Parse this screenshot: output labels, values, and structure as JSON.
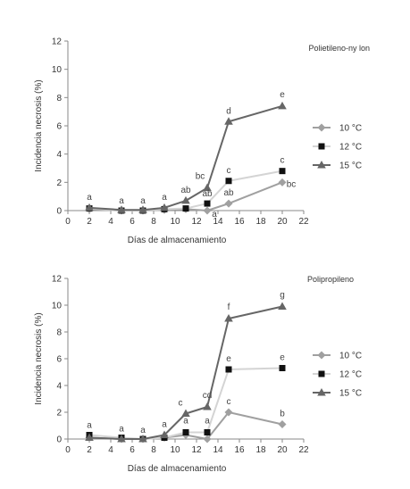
{
  "chart_data": [
    {
      "type": "line",
      "title": "Polietileno-ny lon",
      "xlabel": "Días de almacenamiento",
      "ylabel": "Incidencia necrosis (%)",
      "xlim": [
        0,
        22
      ],
      "ylim": [
        0,
        12
      ],
      "x_ticks": [
        0,
        2,
        4,
        6,
        8,
        10,
        12,
        14,
        16,
        18,
        20,
        22
      ],
      "y_ticks": [
        0,
        2,
        4,
        6,
        8,
        10,
        12
      ],
      "grid": false,
      "legend_position": "right",
      "series": [
        {
          "name": "10 °C",
          "color": "#a0a0a0",
          "marker": "diamond",
          "x": [
            2,
            5,
            7,
            9,
            11,
            13,
            15,
            20
          ],
          "y": [
            0.1,
            0.0,
            0.0,
            0.05,
            0.1,
            0.0,
            0.5,
            2.0
          ]
        },
        {
          "name": "12 °C",
          "color": "#111111",
          "line_color": "#d4d4d4",
          "marker": "square",
          "x": [
            2,
            5,
            7,
            9,
            11,
            13,
            15,
            20
          ],
          "y": [
            0.15,
            0.0,
            0.0,
            0.1,
            0.15,
            0.5,
            2.1,
            2.8
          ]
        },
        {
          "name": "15 °C",
          "color": "#666666",
          "marker": "triangle",
          "x": [
            2,
            5,
            7,
            9,
            11,
            13,
            15,
            20
          ],
          "y": [
            0.2,
            0.05,
            0.05,
            0.2,
            0.7,
            1.6,
            6.3,
            7.4
          ]
        }
      ],
      "annotations": [
        {
          "x": 2,
          "y": 0.2,
          "text": "a"
        },
        {
          "x": 5,
          "y": 0.05,
          "text": "a"
        },
        {
          "x": 7,
          "y": 0.05,
          "text": "a"
        },
        {
          "x": 9,
          "y": 0.2,
          "text": "a"
        },
        {
          "x": 11,
          "y": 0.7,
          "text": "ab"
        },
        {
          "x": 13,
          "y": 1.6,
          "text": "bc"
        },
        {
          "x": 13,
          "y": 0.5,
          "text": "ab"
        },
        {
          "x": 13,
          "y": 0.0,
          "text": "a"
        },
        {
          "x": 15,
          "y": 6.3,
          "text": "d"
        },
        {
          "x": 15,
          "y": 2.1,
          "text": "c"
        },
        {
          "x": 15,
          "y": 0.5,
          "text": "ab"
        },
        {
          "x": 20,
          "y": 7.4,
          "text": "e"
        },
        {
          "x": 20,
          "y": 2.8,
          "text": "c"
        },
        {
          "x": 20,
          "y": 2.0,
          "text": "bc"
        }
      ]
    },
    {
      "type": "line",
      "title": "Polipropileno",
      "xlabel": "Días de almacenamiento",
      "ylabel": "Incidencia necrosis (%)",
      "xlim": [
        0,
        22
      ],
      "ylim": [
        0,
        12
      ],
      "x_ticks": [
        0,
        2,
        4,
        6,
        8,
        10,
        12,
        14,
        16,
        18,
        20,
        22
      ],
      "y_ticks": [
        0,
        2,
        4,
        6,
        8,
        10,
        12
      ],
      "grid": false,
      "legend_position": "right",
      "series": [
        {
          "name": "10 °C",
          "color": "#a0a0a0",
          "marker": "diamond",
          "x": [
            2,
            5,
            7,
            9,
            11,
            13,
            15,
            20
          ],
          "y": [
            0.1,
            0.0,
            0.0,
            0.1,
            0.3,
            0.0,
            2.0,
            1.1
          ]
        },
        {
          "name": "12 °C",
          "color": "#111111",
          "line_color": "#d4d4d4",
          "marker": "square",
          "x": [
            2,
            5,
            7,
            9,
            11,
            13,
            15,
            20
          ],
          "y": [
            0.3,
            0.1,
            0.0,
            0.1,
            0.5,
            0.5,
            5.2,
            5.3
          ]
        },
        {
          "name": "15 °C",
          "color": "#666666",
          "marker": "triangle",
          "x": [
            2,
            5,
            7,
            9,
            11,
            13,
            15,
            20
          ],
          "y": [
            0.1,
            0.0,
            0.0,
            0.3,
            1.9,
            2.4,
            9.0,
            9.9
          ]
        }
      ],
      "annotations": [
        {
          "x": 2,
          "y": 0.3,
          "text": "a"
        },
        {
          "x": 5,
          "y": 0.1,
          "text": "a"
        },
        {
          "x": 7,
          "y": 0.0,
          "text": "a"
        },
        {
          "x": 9,
          "y": 0.3,
          "text": "a"
        },
        {
          "x": 11,
          "y": 1.9,
          "text": "c"
        },
        {
          "x": 11,
          "y": 0.5,
          "text": "a"
        },
        {
          "x": 13,
          "y": 2.4,
          "text": "cd"
        },
        {
          "x": 13,
          "y": 0.5,
          "text": "a"
        },
        {
          "x": 15,
          "y": 9.0,
          "text": "f"
        },
        {
          "x": 15,
          "y": 5.2,
          "text": "e"
        },
        {
          "x": 15,
          "y": 2.0,
          "text": "c"
        },
        {
          "x": 20,
          "y": 9.9,
          "text": "g"
        },
        {
          "x": 20,
          "y": 5.3,
          "text": "e"
        },
        {
          "x": 20,
          "y": 1.1,
          "text": "b"
        }
      ]
    }
  ]
}
